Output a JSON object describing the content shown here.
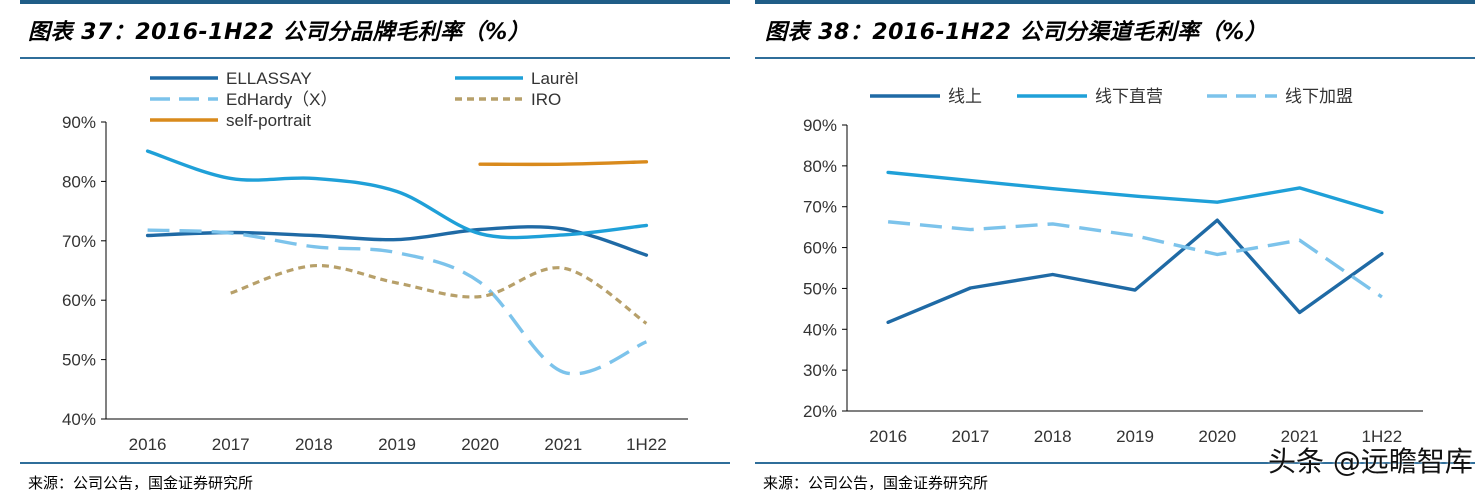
{
  "charts": [
    {
      "title": "图表 37：2016-1H22 公司分品牌毛利率（%）",
      "source": "来源：公司公告，国金证券研究所",
      "colors": {
        "ELLASSAY": "#1f6aa5",
        "Laurèl": "#1fa0d8",
        "EdHardy（X）": "#7cc3eb",
        "IRO": "#b7a06a",
        "self-portrait": "#d98a1c"
      },
      "chart_data": {
        "type": "line",
        "categories": [
          "2016",
          "2017",
          "2018",
          "2019",
          "2020",
          "2021",
          "1H22"
        ],
        "ylim": [
          40,
          90
        ],
        "yticks": [
          "40%",
          "50%",
          "60%",
          "70%",
          "80%",
          "90%"
        ],
        "legend_position": "top",
        "series": [
          {
            "name": "ELLASSAY",
            "style": "solid",
            "values": [
              70.9,
              71.4,
              70.9,
              70.2,
              71.9,
              72.0,
              67.6
            ]
          },
          {
            "name": "Laurèl",
            "style": "solid",
            "values": [
              85.1,
              80.5,
              80.5,
              78.3,
              71.2,
              71.0,
              72.6
            ]
          },
          {
            "name": "EdHardy（X）",
            "style": "dashed",
            "values": [
              71.8,
              71.3,
              69.0,
              68.0,
              63.0,
              47.9,
              53.0
            ]
          },
          {
            "name": "IRO",
            "style": "dotted",
            "values": [
              null,
              61.2,
              65.8,
              62.9,
              60.6,
              65.4,
              56.1
            ]
          },
          {
            "name": "self-portrait",
            "style": "solid",
            "values": [
              null,
              null,
              null,
              null,
              82.9,
              82.9,
              83.3
            ]
          }
        ]
      }
    },
    {
      "title": "图表 38：2016-1H22 公司分渠道毛利率（%）",
      "source": "来源：公司公告，国金证券研究所",
      "colors": {
        "线上": "#1f6aa5",
        "线下直营": "#1fa0d8",
        "线下加盟": "#7cc3eb"
      },
      "chart_data": {
        "type": "line",
        "categories": [
          "2016",
          "2017",
          "2018",
          "2019",
          "2020",
          "2021",
          "1H22"
        ],
        "ylim": [
          20,
          90
        ],
        "yticks": [
          "20%",
          "30%",
          "40%",
          "50%",
          "60%",
          "70%",
          "80%",
          "90%"
        ],
        "legend_position": "top",
        "series": [
          {
            "name": "线上",
            "style": "solid",
            "values": [
              41.7,
              50.1,
              53.4,
              49.6,
              66.7,
              44.1,
              58.5
            ]
          },
          {
            "name": "线下直营",
            "style": "solid",
            "values": [
              78.4,
              76.4,
              74.4,
              72.6,
              71.1,
              74.6,
              68.6
            ]
          },
          {
            "name": "线下加盟",
            "style": "dashed",
            "values": [
              66.3,
              64.4,
              65.8,
              62.9,
              58.3,
              61.8,
              47.9
            ]
          }
        ]
      }
    }
  ],
  "watermark": "头条 @远瞻智库"
}
